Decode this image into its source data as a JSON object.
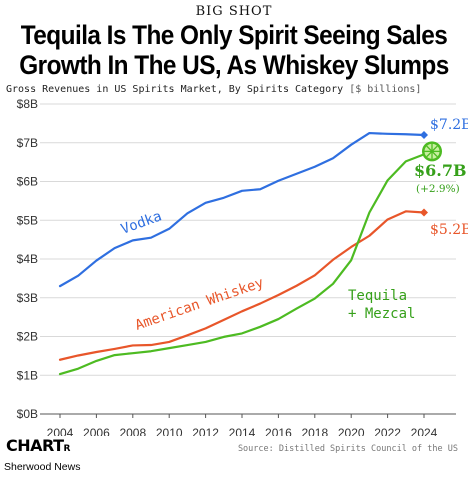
{
  "kicker": "BIG SHOT",
  "title_line1": "Tequila Is The Only Spirit Seeing Sales",
  "title_line2": "Growth In The US, As Whiskey Slumps",
  "subtitle": "Gross Revenues in US Spirits Market, By Spirits Category",
  "subtitle_units": "[$ billions]",
  "source": "Source: Distilled Spirits Council of the US",
  "logo": {
    "big": "CHART",
    "small": "R"
  },
  "publisher": "Sherwood News",
  "colors": {
    "vodka": "#2f6fe0",
    "whiskey": "#e8562a",
    "tequila": "#4dbb22",
    "grid": "#d9d9d9"
  },
  "chart_data": {
    "type": "line",
    "x": [
      2004,
      2005,
      2006,
      2007,
      2008,
      2009,
      2010,
      2011,
      2012,
      2013,
      2014,
      2015,
      2016,
      2017,
      2018,
      2019,
      2020,
      2021,
      2022,
      2023,
      2024
    ],
    "xticks": [
      "2004",
      "2006",
      "2008",
      "2010",
      "2012",
      "2014",
      "2016",
      "2018",
      "2020",
      "2022",
      "2024"
    ],
    "yticks": [
      "$0B",
      "$1B",
      "$2B",
      "$3B",
      "$4B",
      "$5B",
      "$6B",
      "$7B",
      "$8B"
    ],
    "ylim": [
      0,
      8
    ],
    "xlim": [
      2004,
      2024
    ],
    "grid": true,
    "series": [
      {
        "name": "Vodka",
        "key": "vodka",
        "values": [
          3.3,
          3.57,
          3.96,
          4.28,
          4.48,
          4.55,
          4.78,
          5.18,
          5.45,
          5.58,
          5.76,
          5.8,
          6.02,
          6.2,
          6.38,
          6.6,
          6.95,
          7.25,
          7.23,
          7.22,
          7.2
        ],
        "end_label": "$7.2B"
      },
      {
        "name": "American Whiskey",
        "key": "whiskey",
        "values": [
          1.4,
          1.51,
          1.6,
          1.68,
          1.77,
          1.78,
          1.86,
          2.03,
          2.21,
          2.43,
          2.65,
          2.85,
          3.07,
          3.31,
          3.58,
          3.98,
          4.31,
          4.6,
          5.02,
          5.23,
          5.2
        ],
        "end_label": "$5.2B"
      },
      {
        "name": "Tequila\n+ Mezcal",
        "key": "tequila",
        "values": [
          1.03,
          1.17,
          1.37,
          1.52,
          1.57,
          1.62,
          1.7,
          1.78,
          1.86,
          1.99,
          2.08,
          2.25,
          2.45,
          2.72,
          2.98,
          3.36,
          3.97,
          5.2,
          6.03,
          6.52,
          6.7
        ],
        "end_label": "$6.7B",
        "end_change": "(+2.9%)"
      }
    ]
  }
}
